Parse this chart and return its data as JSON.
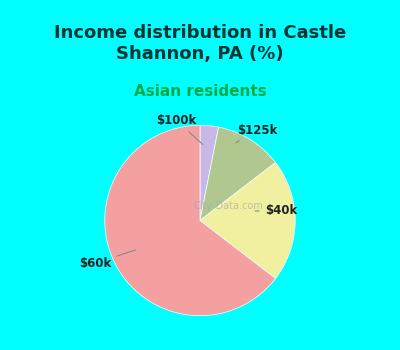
{
  "title": "Income distribution in Castle\nShannon, PA (%)",
  "subtitle": "Asian residents",
  "title_color": "#003333",
  "subtitle_color": "#00aa44",
  "background_outer": "#00ffff",
  "background_inner": "#e8f5e0",
  "slices": [
    {
      "label": "$60k",
      "value": 62,
      "color": "#f4a0a0",
      "label_side": "left"
    },
    {
      "label": "$40k",
      "value": 20,
      "color": "#f0f0a0",
      "label_side": "right"
    },
    {
      "label": "$125k",
      "value": 11,
      "color": "#b0c890",
      "label_side": "right"
    },
    {
      "label": "$100k",
      "value": 3,
      "color": "#c8b8e8",
      "label_side": "right"
    }
  ],
  "startangle": 90,
  "figsize": [
    4.0,
    3.5
  ],
  "dpi": 100
}
